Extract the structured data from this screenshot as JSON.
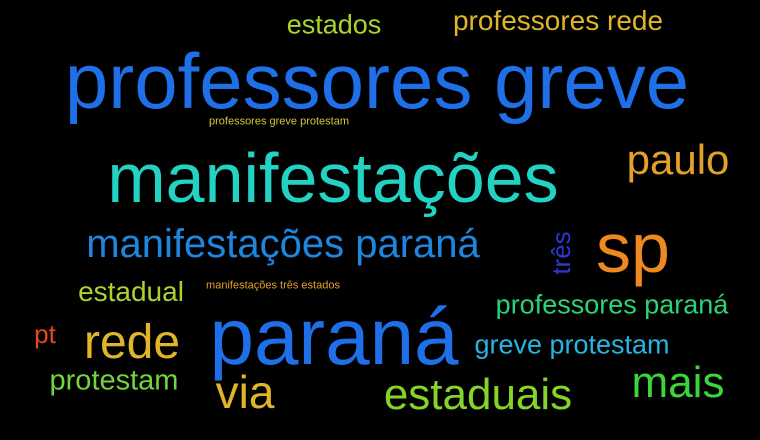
{
  "words": [
    {
      "text": "estados",
      "color": "#a8d52c"
    },
    {
      "text": "professores rede",
      "color": "#e0b52a"
    },
    {
      "text": "professores greve",
      "color": "#1f6fe8"
    },
    {
      "text": "professores greve protestam",
      "color": "#d6c63a"
    },
    {
      "text": "manifestações",
      "color": "#24d2c4"
    },
    {
      "text": "paulo",
      "color": "#e3a12a"
    },
    {
      "text": "manifestações paraná",
      "color": "#1f86e0"
    },
    {
      "text": "três",
      "color": "#2a38d6"
    },
    {
      "text": "sp",
      "color": "#ec8a1f"
    },
    {
      "text": "estadual",
      "color": "#a8d52c"
    },
    {
      "text": "manifestações três estados",
      "color": "#e3a12a"
    },
    {
      "text": "professores paraná",
      "color": "#2ad476"
    },
    {
      "text": "pt",
      "color": "#e14a1f"
    },
    {
      "text": "rede",
      "color": "#e0b52a"
    },
    {
      "text": "paraná",
      "color": "#1f6fe8"
    },
    {
      "text": "greve protestam",
      "color": "#26b4e0"
    },
    {
      "text": "protestam",
      "color": "#72d43a"
    },
    {
      "text": "via",
      "color": "#e0b52a"
    },
    {
      "text": "estaduais",
      "color": "#86d42a"
    },
    {
      "text": "mais",
      "color": "#3ad63a"
    }
  ]
}
